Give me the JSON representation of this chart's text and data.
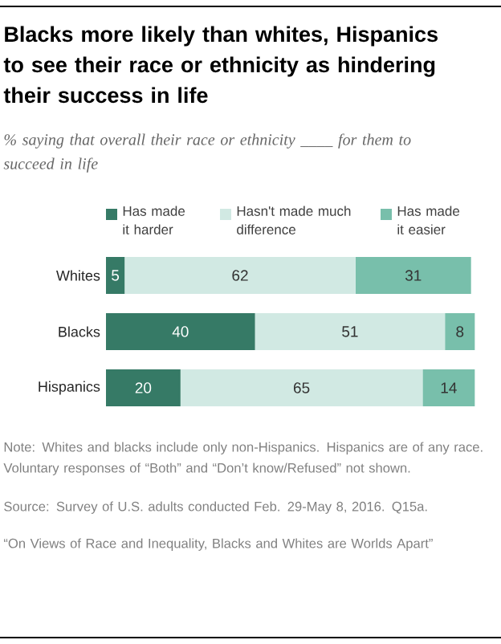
{
  "chart_data": {
    "type": "bar",
    "orientation": "horizontal",
    "stacked": true,
    "data_labels": true,
    "legend": "top",
    "title": "Blacks more likely than whites, Hispanics to see their race or ethnicity as hindering their success in life",
    "subtitle": "% saying that overall their race or ethnicity ____ for them to succeed in life",
    "categories": [
      "Whites",
      "Blacks",
      "Hispanics"
    ],
    "series": [
      {
        "name": "Has made it harder",
        "color": "#367a66",
        "values": [
          5,
          40,
          20
        ]
      },
      {
        "name": "Hasn't made much difference",
        "color": "#d1e9e3",
        "values": [
          62,
          51,
          65
        ]
      },
      {
        "name": "Has made it easier",
        "color": "#78bfab",
        "values": [
          31,
          8,
          14
        ]
      }
    ],
    "annotations": [
      "Note: Whites and blacks include only non-Hispanics. Hispanics are of any race. Voluntary responses of “Both” and “Don’t know/Refused” not shown.",
      "Source: Survey of U.S. adults conducted Feb. 29-May 8, 2016. Q15a.",
      "“On Views of Race and Inequality, Blacks and Whites are Worlds Apart”"
    ]
  }
}
